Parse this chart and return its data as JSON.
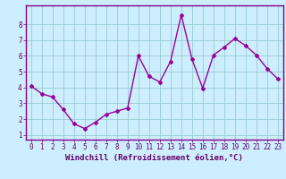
{
  "x": [
    0,
    1,
    2,
    3,
    4,
    5,
    6,
    7,
    8,
    9,
    10,
    11,
    12,
    13,
    14,
    15,
    16,
    17,
    18,
    19,
    20,
    21,
    22,
    23
  ],
  "y": [
    4.1,
    3.6,
    3.4,
    2.6,
    1.7,
    1.4,
    1.8,
    2.3,
    2.5,
    2.7,
    6.0,
    4.7,
    4.35,
    5.65,
    8.6,
    5.8,
    3.95,
    6.05,
    6.55,
    7.1,
    6.65,
    6.05,
    5.2,
    4.55
  ],
  "line_color": "#990099",
  "marker": "D",
  "marker_size": 2,
  "bg_color": "#cceeff",
  "grid_color": "#99cccc",
  "xlabel": "Windchill (Refroidissement éolien,°C)",
  "xlim": [
    -0.5,
    23.5
  ],
  "ylim": [
    0.7,
    9.2
  ],
  "yticks": [
    1,
    2,
    3,
    4,
    5,
    6,
    7,
    8
  ],
  "xticks": [
    0,
    1,
    2,
    3,
    4,
    5,
    6,
    7,
    8,
    9,
    10,
    11,
    12,
    13,
    14,
    15,
    16,
    17,
    18,
    19,
    20,
    21,
    22,
    23
  ],
  "tick_color": "#660066",
  "label_color": "#660066",
  "spine_color": "#880088",
  "xlabel_fontsize": 6.5,
  "tick_fontsize": 5.5,
  "line_width": 1.0
}
